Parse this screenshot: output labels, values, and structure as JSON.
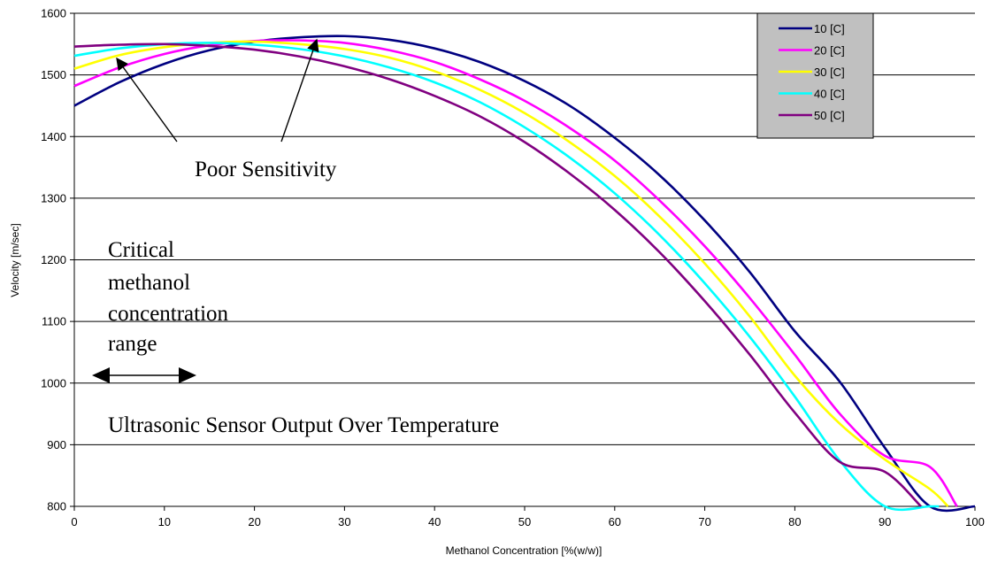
{
  "chart_data": {
    "type": "line",
    "title": "",
    "xlabel": "Methanol Concentration [%(w/w)]",
    "ylabel": "Velocity [m/sec]",
    "xlim": [
      0,
      100
    ],
    "ylim": [
      800,
      1600
    ],
    "x_ticks": [
      "0",
      "10",
      "20",
      "30",
      "40",
      "50",
      "60",
      "70",
      "80",
      "90",
      "100"
    ],
    "y_ticks": [
      "800",
      "900",
      "1000",
      "1100",
      "1200",
      "1300",
      "1400",
      "1500",
      "1600"
    ],
    "grid": "horizontal",
    "legend_position": "top-right",
    "legend_background": "#c0c0c0",
    "series": [
      {
        "name": "10 [C]",
        "color": "#000080",
        "x": [
          0,
          5,
          10,
          15,
          20,
          25,
          30,
          35,
          40,
          45,
          50,
          55,
          60,
          65,
          70,
          75,
          80,
          85,
          90,
          95,
          100
        ],
        "y": [
          1450,
          1488,
          1518,
          1540,
          1554,
          1561,
          1563,
          1557,
          1543,
          1521,
          1490,
          1450,
          1398,
          1337,
          1264,
          1180,
          1084,
          1002,
          895,
          800,
          800
        ]
      },
      {
        "name": "20 [C]",
        "color": "#ff00ff",
        "x": [
          0,
          5,
          10,
          15,
          20,
          25,
          30,
          35,
          40,
          45,
          50,
          55,
          60,
          65,
          70,
          75,
          80,
          85,
          90,
          95,
          98
        ],
        "y": [
          1482,
          1512,
          1534,
          1548,
          1555,
          1556,
          1552,
          1540,
          1521,
          1493,
          1458,
          1414,
          1361,
          1296,
          1222,
          1138,
          1046,
          950,
          882,
          864,
          800
        ]
      },
      {
        "name": "30 [C]",
        "color": "#ffff00",
        "x": [
          0,
          5,
          10,
          15,
          20,
          25,
          30,
          35,
          40,
          45,
          50,
          55,
          60,
          65,
          70,
          75,
          80,
          85,
          90,
          95,
          97
        ],
        "y": [
          1510,
          1532,
          1545,
          1552,
          1554,
          1550,
          1542,
          1528,
          1506,
          1476,
          1438,
          1391,
          1336,
          1270,
          1194,
          1108,
          1012,
          934,
          876,
          828,
          800
        ]
      },
      {
        "name": "40 [C]",
        "color": "#00ffff",
        "x": [
          0,
          5,
          10,
          15,
          20,
          25,
          30,
          35,
          40,
          45,
          50,
          55,
          60,
          65,
          70,
          75,
          80,
          85,
          90,
          95,
          96
        ],
        "y": [
          1531,
          1543,
          1550,
          1552,
          1549,
          1542,
          1530,
          1512,
          1488,
          1456,
          1415,
          1366,
          1308,
          1240,
          1162,
          1075,
          978,
          874,
          800,
          800,
          800
        ]
      },
      {
        "name": "50 [C]",
        "color": "#800080",
        "x": [
          0,
          5,
          10,
          15,
          20,
          25,
          30,
          35,
          40,
          45,
          50,
          55,
          60,
          65,
          70,
          75,
          80,
          85,
          90,
          94
        ],
        "y": [
          1546,
          1549,
          1550,
          1547,
          1541,
          1530,
          1514,
          1493,
          1466,
          1433,
          1391,
          1340,
          1281,
          1212,
          1133,
          1046,
          952,
          872,
          856,
          800
        ]
      }
    ],
    "annotations": {
      "poor_sensitivity": "Poor Sensitivity",
      "critical_range": [
        "Critical",
        "methanol",
        "concentration",
        "range"
      ],
      "subtitle": "Ultrasonic Sensor Output Over Temperature"
    }
  }
}
